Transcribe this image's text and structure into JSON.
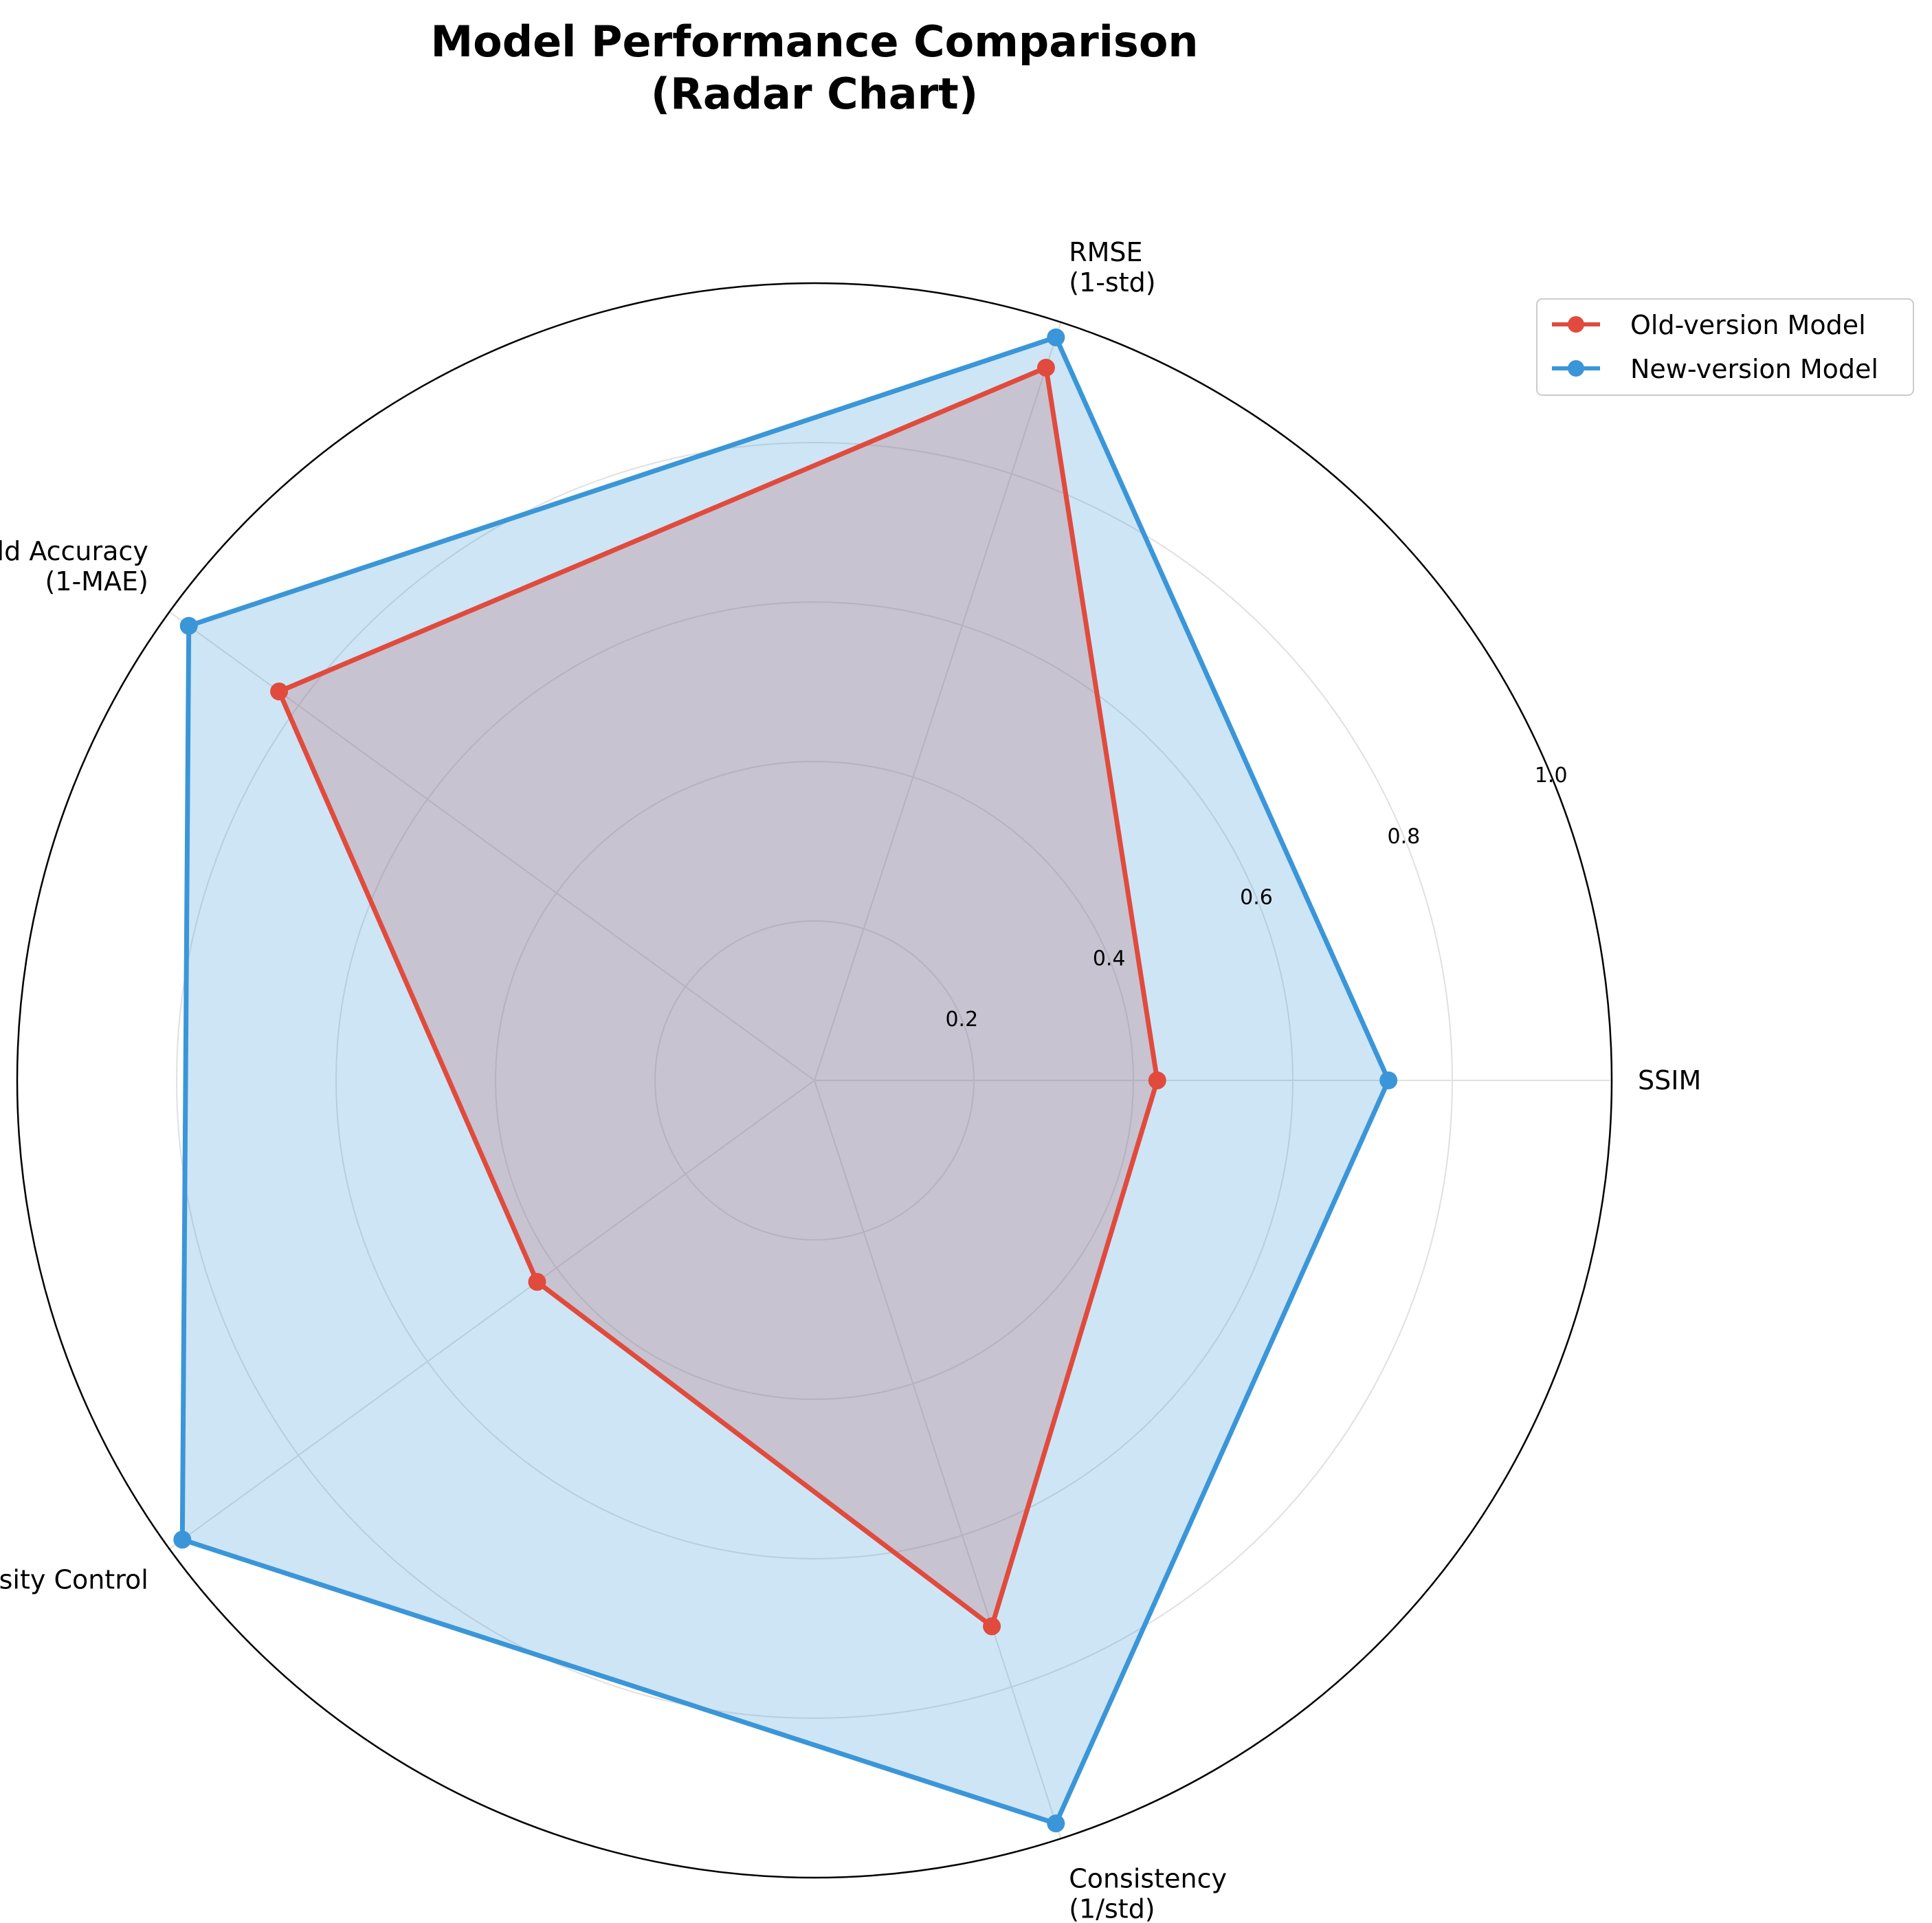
{
  "chart_data": {
    "type": "radar",
    "title_lines": [
      "Model Performance Comparison",
      "(Radar Chart)"
    ],
    "axes": [
      {
        "lines": [
          "SSIM"
        ]
      },
      {
        "lines": [
          "RMSE",
          "(1-std)"
        ]
      },
      {
        "lines": [
          "Field Accuracy",
          "(1-MAE)"
        ]
      },
      {
        "lines": [
          "Intensity Control"
        ]
      },
      {
        "lines": [
          "Consistency",
          "(1/std)"
        ]
      }
    ],
    "rlim": [
      0,
      1.0
    ],
    "rticks": [
      "0.2",
      "0.4",
      "0.6",
      "0.8",
      "1.0"
    ],
    "rtick_values": [
      0.2,
      0.4,
      0.6,
      0.8,
      1.0
    ],
    "grid": true,
    "legend_position": "top-right",
    "series": [
      {
        "name": "Old-version Model",
        "color": "#e04b3d",
        "values": [
          0.43,
          0.94,
          0.83,
          0.43,
          0.72
        ]
      },
      {
        "name": "New-version Model",
        "color": "#3a96d8",
        "values": [
          0.72,
          0.98,
          0.97,
          0.98,
          0.98
        ]
      }
    ],
    "fill_colors": {
      "Old-version Model": "#e04b3d",
      "New-version Model": "#3a96d8"
    }
  }
}
